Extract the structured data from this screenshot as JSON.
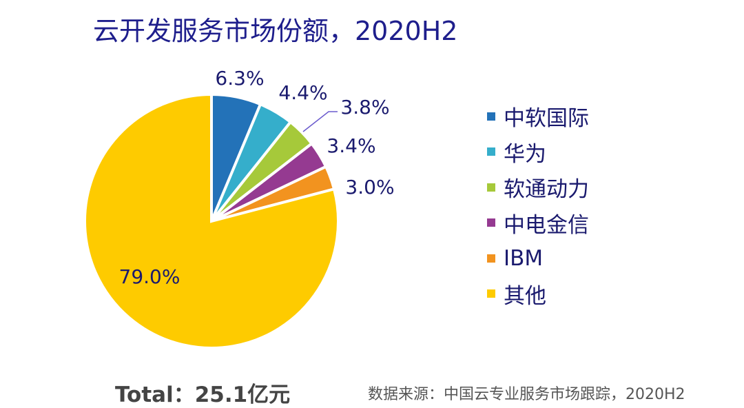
{
  "title": "云开发服务市场份额，2020H2",
  "chart_data": {
    "type": "pie",
    "title": "云开发服务市场份额，2020H2",
    "start_angle": "12 o'clock, clockwise",
    "slices": [
      {
        "label": "中软国际",
        "value": 6.3,
        "display": "6.3%",
        "color": "#2372b8"
      },
      {
        "label": "华为",
        "value": 4.4,
        "display": "4.4%",
        "color": "#35aecb"
      },
      {
        "label": "软通动力",
        "value": 3.8,
        "display": "3.8%",
        "color": "#a6c93a"
      },
      {
        "label": "中电金信",
        "value": 3.4,
        "display": "3.4%",
        "color": "#953a91"
      },
      {
        "label": "IBM",
        "value": 3.0,
        "display": "3.0%",
        "color": "#f2931f"
      },
      {
        "label": "其他",
        "value": 79.0,
        "display": "79.0%",
        "color": "#fecb00"
      }
    ],
    "legend_position": "right"
  },
  "total": "Total：25.1亿元",
  "source": "数据来源：中国云专业服务市场跟踪，2020H2"
}
